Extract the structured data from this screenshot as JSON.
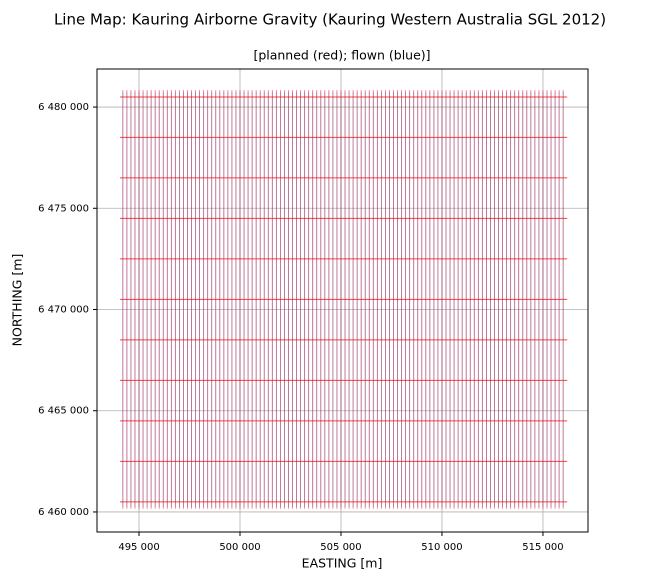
{
  "chart_data": {
    "type": "linemap",
    "title": "Line Map: Kauring Airborne Gravity (Kauring Western Australia SGL 2012)",
    "subtitle": "[planned (red); flown (blue)]",
    "xlabel": "EASTING [m]",
    "ylabel": "NORTHING [m]",
    "xlim": [
      492920,
      517230
    ],
    "ylim": [
      6459010,
      6481880
    ],
    "xticks": [
      {
        "value": 495000,
        "label": "495 000"
      },
      {
        "value": 500000,
        "label": "500 000"
      },
      {
        "value": 505000,
        "label": "505 000"
      },
      {
        "value": 510000,
        "label": "510 000"
      },
      {
        "value": 515000,
        "label": "515 000"
      }
    ],
    "yticks": [
      {
        "value": 6460000,
        "label": "6 460 000"
      },
      {
        "value": 6465000,
        "label": "6 465 000"
      },
      {
        "value": 6470000,
        "label": "6 470 000"
      },
      {
        "value": 6475000,
        "label": "6 475 000"
      },
      {
        "value": 6480000,
        "label": "6 480 000"
      }
    ],
    "grid": true,
    "series": [
      {
        "name": "planned",
        "color": "#ff0000",
        "traverse_x": [
          494200,
          494400,
          494600,
          494800,
          495000,
          495200,
          495400,
          495600,
          495800,
          496000,
          496200,
          496400,
          496600,
          496800,
          497000,
          497200,
          497400,
          497600,
          497800,
          498000,
          498200,
          498400,
          498600,
          498800,
          499000,
          499200,
          499400,
          499600,
          499800,
          500000,
          500200,
          500400,
          500600,
          500800,
          501000,
          501200,
          501400,
          501600,
          501800,
          502000,
          502200,
          502400,
          502600,
          502800,
          503000,
          503200,
          503400,
          503600,
          503800,
          504000,
          504200,
          504400,
          504600,
          504800,
          505000,
          505200,
          505400,
          505600,
          505800,
          506000,
          506200,
          506400,
          506600,
          506800,
          507000,
          507200,
          507400,
          507600,
          507800,
          508000,
          508200,
          508400,
          508600,
          508800,
          509000,
          509200,
          509400,
          509600,
          509800,
          510000,
          510200,
          510400,
          510600,
          510800,
          511000,
          511200,
          511400,
          511600,
          511800,
          512000,
          512200,
          512400,
          512600,
          512800,
          513000,
          513200,
          513400,
          513600,
          513800,
          514000,
          514200,
          514400,
          514600,
          514800,
          515000,
          515200,
          515400,
          515600,
          515800,
          516000
        ],
        "traverse_y_range": [
          6460150,
          6480840
        ],
        "tie_y": [
          6460500,
          6462500,
          6464500,
          6466500,
          6468500,
          6470500,
          6472500,
          6474500,
          6476500,
          6478500,
          6480500
        ],
        "tie_x_range": [
          494060,
          516200
        ]
      },
      {
        "name": "flown",
        "color": "#1f3fb4",
        "traverse_x": [
          494200,
          494400,
          494600,
          494800,
          495000,
          495200,
          495400,
          495600,
          495800,
          496000,
          496200,
          496400,
          496600,
          496800,
          497000,
          497200,
          497400,
          497600,
          497800,
          498000,
          498200,
          498400,
          498600,
          498800,
          499000,
          499200,
          499400,
          499600,
          499800,
          500000,
          500200,
          500400,
          500600,
          500800,
          501000,
          501200,
          501400,
          501600,
          501800,
          502000,
          502200,
          502400,
          502600,
          502800,
          503000,
          503200,
          503400,
          503600,
          503800,
          504000,
          504200,
          504400,
          504600,
          504800,
          505000,
          505200,
          505400,
          505600,
          505800,
          506000,
          506200,
          506400,
          506600,
          506800,
          507000,
          507200,
          507400,
          507600,
          507800,
          508000,
          508200,
          508400,
          508600,
          508800,
          509000,
          509200,
          509400,
          509600,
          509800,
          510000,
          510200,
          510400,
          510600,
          510800,
          511000,
          511200,
          511400,
          511600,
          511800,
          512000,
          512200,
          512400,
          512600,
          512800,
          513000,
          513200,
          513400,
          513600,
          513800,
          514000,
          514200,
          514400,
          514600,
          514800,
          515000,
          515200,
          515400,
          515600,
          515800,
          516000
        ],
        "traverse_y_range": [
          6460250,
          6480750
        ]
      }
    ]
  }
}
